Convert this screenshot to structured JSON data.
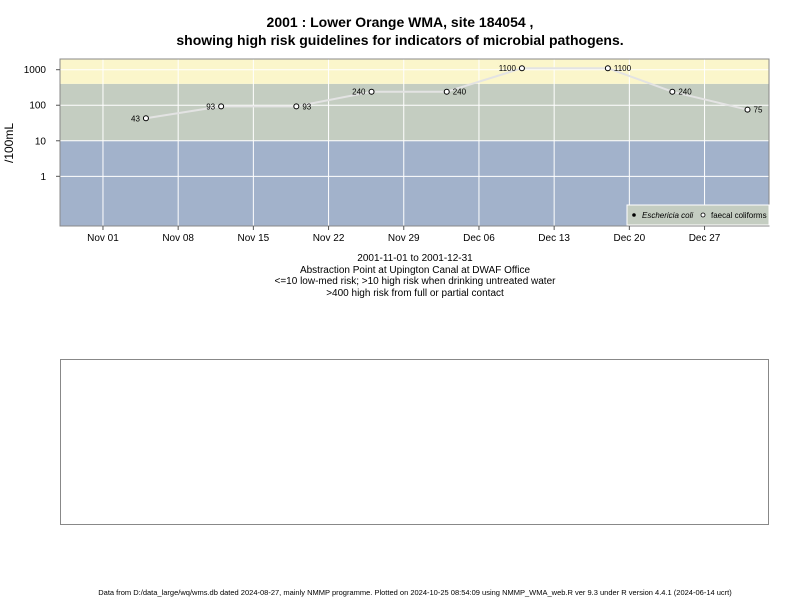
{
  "title_line1": "2001 : Lower Orange WMA, site 184054 ,",
  "title_line2": "showing high risk guidelines for indicators of microbial pathogens.",
  "subtitle_lines": [
    "2001-11-01 to 2001-12-31",
    "Abstraction Point at Upington Canal at DWAF Office",
    "<=10 low-med risk; >10 high risk when drinking untreated water",
    ">400 high risk from full or partial contact"
  ],
  "footer": "Data from D:/data_large/wq/wms.db dated 2024-08-27, mainly NMMP programme. Plotted on 2024-10-25 08:54:09 using NMMP_WMA_web.R ver 9.3 under R version 4.4.1 (2024-06-14 ucrt)",
  "chart_data": {
    "type": "line",
    "ylabel": "/100mL",
    "y_scale": "log",
    "x_range": [
      "2001-10-28",
      "2002-01-02"
    ],
    "y_range": [
      0.04,
      2000
    ],
    "x_ticks": [
      {
        "date": "2001-11-01",
        "label": "Nov 01"
      },
      {
        "date": "2001-11-08",
        "label": "Nov 08"
      },
      {
        "date": "2001-11-15",
        "label": "Nov 15"
      },
      {
        "date": "2001-11-22",
        "label": "Nov 22"
      },
      {
        "date": "2001-11-29",
        "label": "Nov 29"
      },
      {
        "date": "2001-12-06",
        "label": "Dec 06"
      },
      {
        "date": "2001-12-13",
        "label": "Dec 13"
      },
      {
        "date": "2001-12-20",
        "label": "Dec 20"
      },
      {
        "date": "2001-12-27",
        "label": "Dec 27"
      }
    ],
    "y_ticks": [
      {
        "value": 1,
        "label": "1"
      },
      {
        "value": 10,
        "label": "10"
      },
      {
        "value": 100,
        "label": "100"
      },
      {
        "value": 1000,
        "label": "1000"
      }
    ],
    "risk_bands": [
      {
        "from": 0.04,
        "to": 10,
        "color": "#a2b2cb"
      },
      {
        "from": 10,
        "to": 400,
        "color": "#c4cdc1"
      },
      {
        "from": 400,
        "to": 2000,
        "color": "#fbf6cb"
      }
    ],
    "series": [
      {
        "name": "Eschericia coli",
        "marker": "filled",
        "points": []
      },
      {
        "name": "faecal coliforms",
        "marker": "open",
        "line_color": "#e3e3e3",
        "points": [
          {
            "date": "2001-11-05",
            "value": 43
          },
          {
            "date": "2001-11-12",
            "value": 93
          },
          {
            "date": "2001-11-19",
            "value": 93
          },
          {
            "date": "2001-11-26",
            "value": 240
          },
          {
            "date": "2001-12-03",
            "value": 240
          },
          {
            "date": "2001-12-10",
            "value": 1100
          },
          {
            "date": "2001-12-18",
            "value": 1100
          },
          {
            "date": "2001-12-24",
            "value": 240
          },
          {
            "date": "2001-12-31",
            "value": 75
          }
        ]
      }
    ],
    "legend_position": "bottom-right",
    "grid": true
  }
}
